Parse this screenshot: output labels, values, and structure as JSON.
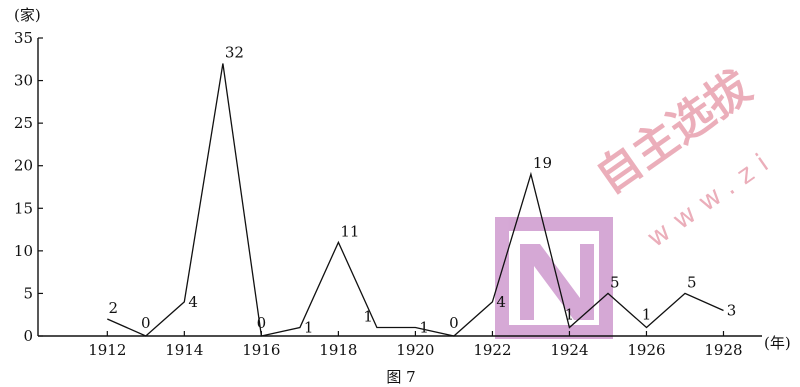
{
  "chart_data": {
    "type": "line",
    "x": [
      1912,
      1913,
      1914,
      1915,
      1916,
      1917,
      1918,
      1919,
      1920,
      1921,
      1922,
      1923,
      1924,
      1925,
      1926,
      1927,
      1928
    ],
    "values": [
      2,
      0,
      4,
      32,
      0,
      1,
      11,
      1,
      1,
      0,
      4,
      19,
      1,
      5,
      1,
      5,
      3
    ],
    "xticks": [
      "1912",
      "1914",
      "1916",
      "1918",
      "1920",
      "1922",
      "1924",
      "1926",
      "1928"
    ],
    "yticks": [
      "0",
      "5",
      "10",
      "15",
      "20",
      "25",
      "30",
      "35"
    ],
    "xlim": [
      1910.2,
      1929
    ],
    "ylim": [
      0,
      35
    ],
    "xlabel": "(年)",
    "ylabel": "(家)",
    "caption": "图 7",
    "grid": false,
    "line_color": "#111111"
  },
  "watermark": {
    "brand": "自主选拔",
    "site": "www.zi",
    "logo_color": "#c88cc8"
  }
}
